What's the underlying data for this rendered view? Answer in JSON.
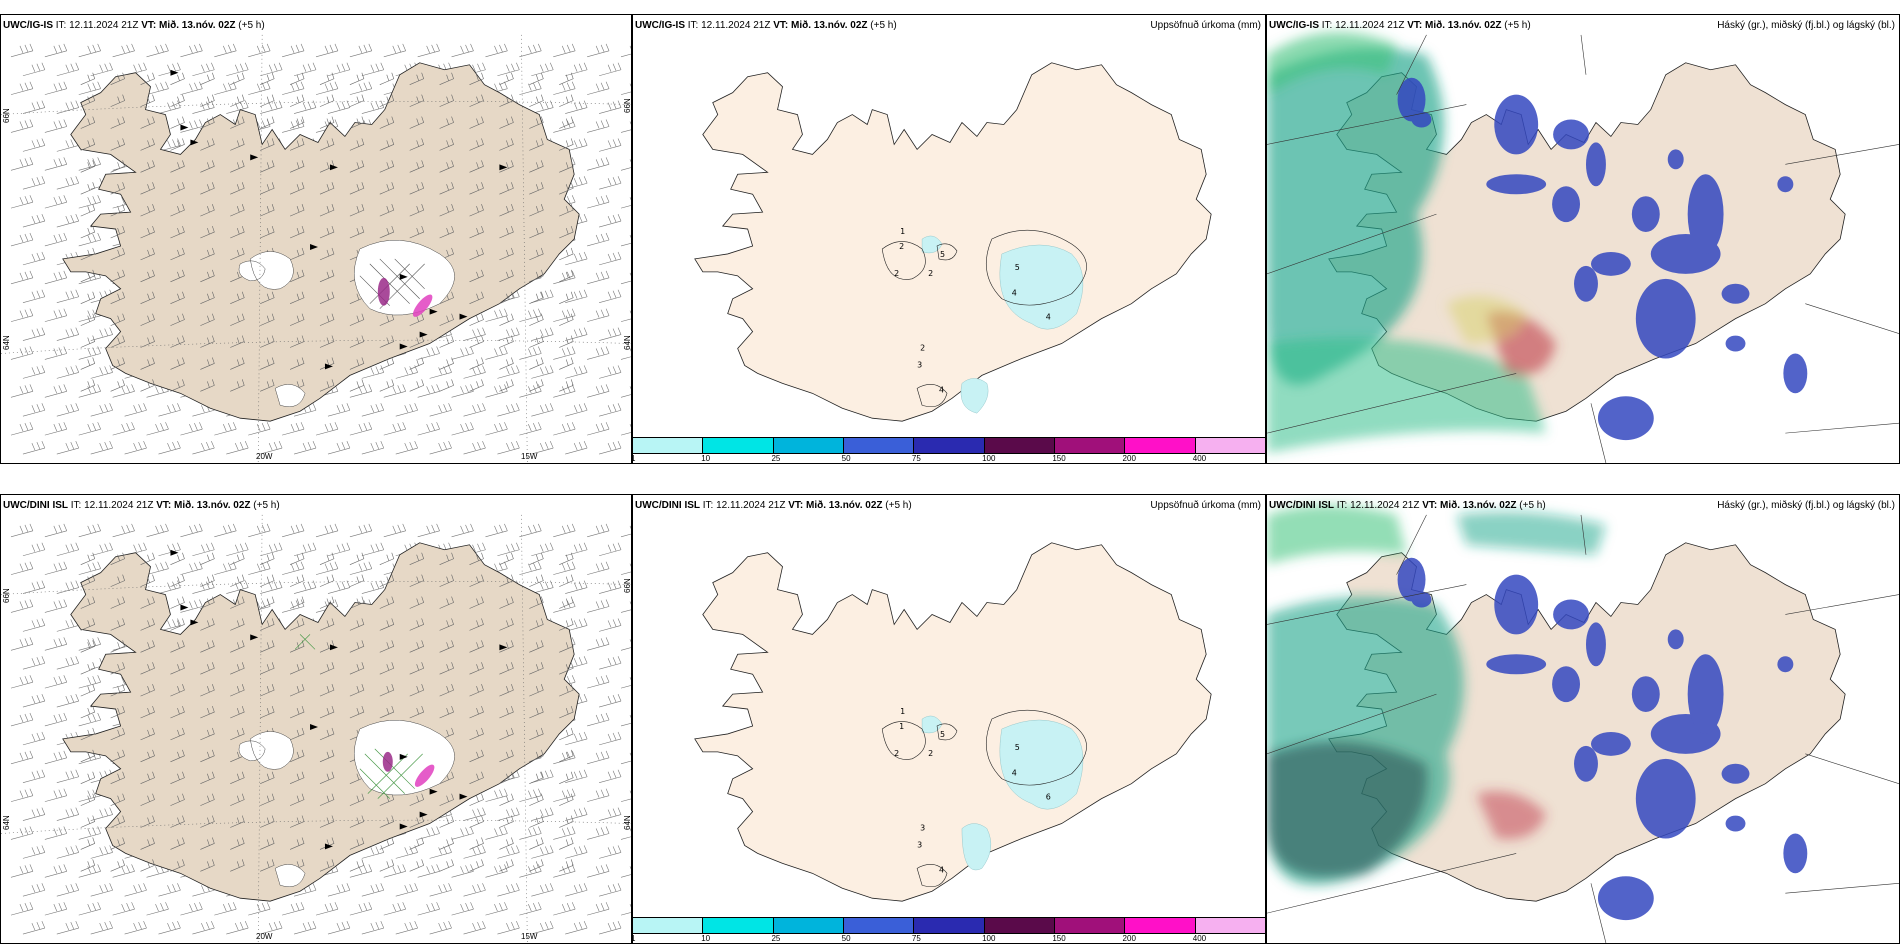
{
  "rows": [
    {
      "panels": [
        {
          "model": "UWC/IG-IS",
          "it_label": "IT:",
          "it": "12.11.2024 21Z",
          "vt_label": "VT:",
          "vt": "Mið. 13.nóv. 02Z",
          "offset": "(+5 h)",
          "right": ""
        },
        {
          "model": "UWC/IG-IS",
          "it_label": "IT:",
          "it": "12.11.2024 21Z",
          "vt_label": "VT:",
          "vt": "Mið. 13.nóv. 02Z",
          "offset": "(+5 h)",
          "right": "Uppsöfnuð úrkoma (mm)"
        },
        {
          "model": "UWC/IG-IS",
          "it_label": "IT:",
          "it": "12.11.2024 21Z",
          "vt_label": "VT:",
          "vt": "Mið. 13.nóv. 02Z",
          "offset": "(+5 h)",
          "right": "Háský (gr.), miðský (fj.bl.) og lágský (bl.)"
        }
      ],
      "precip_numbers": [
        "1",
        "2",
        "2",
        "2",
        "5",
        "5",
        "4",
        "4",
        "2",
        "3",
        "4"
      ]
    },
    {
      "panels": [
        {
          "model": "UWC/DINI ISL",
          "it_label": "IT:",
          "it": "12.11.2024 21Z",
          "vt_label": "VT:",
          "vt": "Mið. 13.nóv. 02Z",
          "offset": "(+5 h)",
          "right": ""
        },
        {
          "model": "UWC/DINI ISL",
          "it_label": "IT:",
          "it": "12.11.2024 21Z",
          "vt_label": "VT:",
          "vt": "Mið. 13.nóv. 02Z",
          "offset": "(+5 h)",
          "right": "Uppsöfnuð úrkoma (mm)"
        },
        {
          "model": "UWC/DINI ISL",
          "it_label": "IT:",
          "it": "12.11.2024 21Z",
          "vt_label": "VT:",
          "vt": "Mið. 13.nóv. 02Z",
          "offset": "(+5 h)",
          "right": "Háský (gr.), miðský (fj.bl.) og lágský (bl.)"
        }
      ],
      "precip_numbers": [
        "1",
        "1",
        "2",
        "2",
        "5",
        "5",
        "4",
        "6",
        "3",
        "3",
        "4"
      ]
    }
  ],
  "axis_labels": {
    "lon_west": "20W",
    "lon_east": "15W",
    "lat_a": "66N",
    "lat_b": "64N"
  },
  "colorbar": {
    "ticks": [
      "1",
      "10",
      "25",
      "50",
      "75",
      "100",
      "150",
      "200",
      "400"
    ],
    "colors": [
      "#b8f5f5",
      "#00e5e5",
      "#00b4dc",
      "#3a5fd8",
      "#2a2ab0",
      "#5a0a4a",
      "#a0107a",
      "#ff10c8",
      "#f6b0f0"
    ]
  },
  "colors": {
    "land_wind": "#e6d8c6",
    "land_precip": "#fcefe2",
    "land_cloud": "#efe1d3",
    "ice": "#ffffff",
    "precip_light": "#c8f2f4",
    "low_cloud": "#3a50c8",
    "mid_cloud": "#2aa890",
    "high_cloud": "#b03060"
  }
}
